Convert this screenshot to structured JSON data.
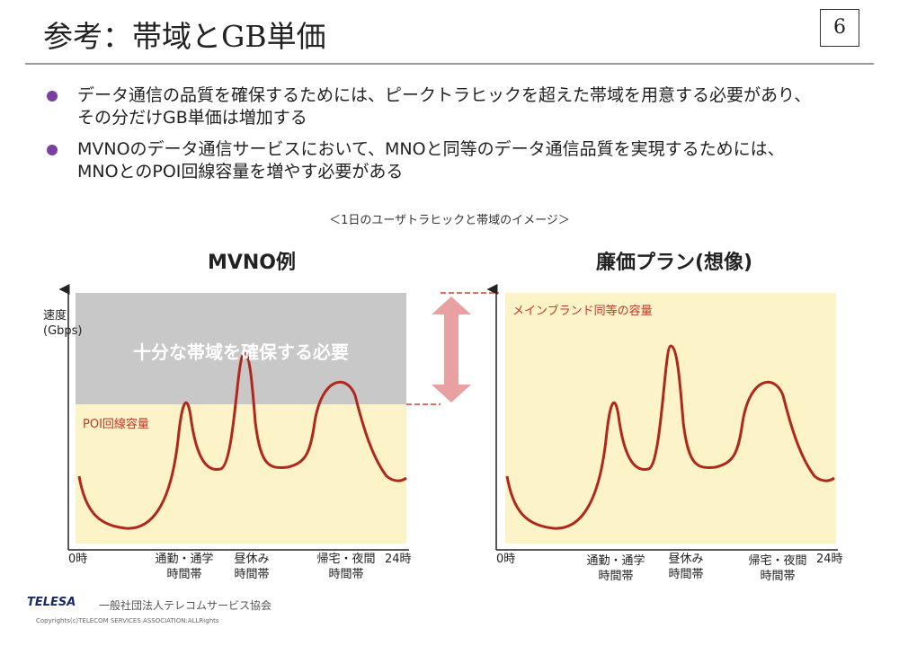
{
  "header": {
    "title": "参考：帯域とGB単価",
    "page_number": "6"
  },
  "bullets": [
    {
      "lines": [
        "データ通信の品質を確保するためには、ピークトラヒックを超えた帯域を用意する必要があり、",
        "その分だけGB単価は増加する"
      ]
    },
    {
      "lines": [
        "MVNOのデータ通信サービスにおいて、MNOと同等のデータ通信品質を実現するためには、",
        "MNOとのPOI回線容量を増やす必要がある"
      ]
    }
  ],
  "caption": "＜1日のユーザトラヒックと帯域のイメージ＞",
  "left_chart": {
    "title": "MVNO例",
    "ylabel_1": "速度",
    "ylabel_2": "(Gbps)",
    "band_label": "十分な帯域を確保する必要",
    "capacity_label": "POI回線容量"
  },
  "right_chart": {
    "title": "廉価プラン(想像)",
    "capacity_label": "メインブランド同等の容量"
  },
  "x_labels": {
    "start": "0時",
    "commute_1": "通勤・通学",
    "commute_2": "時間帯",
    "lunch_1": "昼休み",
    "lunch_2": "時間帯",
    "evening_1": "帰宅・夜間",
    "evening_2": "時間帯",
    "end": "24時"
  },
  "colors": {
    "accent": "#7a3fa0",
    "curve": "#b0281c",
    "capacity_fill": "#fdf3c8",
    "band_fill": "#c8c8c8",
    "arrow": "#e8a0a0"
  },
  "footer": {
    "logo_text": "TELESA",
    "org": "一般社団法人テレコムサービス協会",
    "copyright": "Copyrights(c)TELECOM SERVICES ASSOCIATION:ALLRights"
  }
}
